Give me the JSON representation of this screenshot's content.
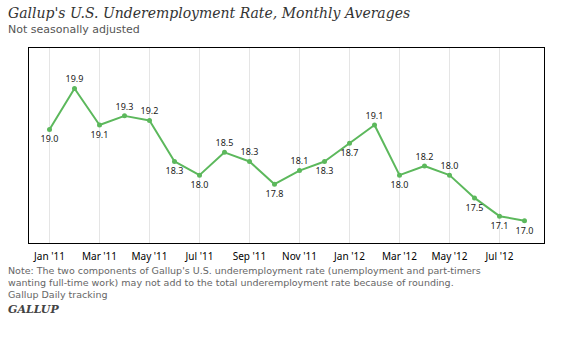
{
  "chart_data": {
    "type": "line",
    "title": "Gallup's U.S. Underemployment Rate, Monthly Averages",
    "subtitle": "Not seasonally adjusted",
    "categories": [
      "Jan '11",
      null,
      "Mar '11",
      null,
      "May '11",
      null,
      "Jul '11",
      null,
      "Sep '11",
      null,
      "Nov '11",
      null,
      "Jan '12",
      null,
      "Mar '12",
      null,
      "May '12",
      null,
      "Jul '12",
      null
    ],
    "values": [
      19.0,
      19.9,
      19.1,
      19.3,
      19.2,
      18.3,
      18.0,
      18.5,
      18.3,
      17.8,
      18.1,
      18.3,
      18.7,
      19.1,
      18.0,
      18.2,
      18.0,
      17.5,
      17.1,
      17.0
    ],
    "value_labels": [
      "19.0",
      "19.9",
      "19.1",
      "19.3",
      "19.2",
      "18.3",
      "18.0",
      "18.5",
      "18.3",
      "17.8",
      "18.1",
      "18.3",
      "18.7",
      "19.1",
      "18.0",
      "18.2",
      "18.0",
      "17.5",
      "17.1",
      "17.0"
    ],
    "color": "#5cb85c",
    "marker": "circle",
    "ylim": [
      16.5,
      20.8
    ],
    "grid": true,
    "data_labels": true,
    "tick_labels": "x",
    "notes": [
      "Note: The two components of Gallup's U.S. underemployment rate (unemployment and part-timers",
      "wanting full-time work) may not add to the total underemployment rate because of rounding.",
      "Gallup Daily tracking"
    ],
    "footer": "GALLUP"
  }
}
